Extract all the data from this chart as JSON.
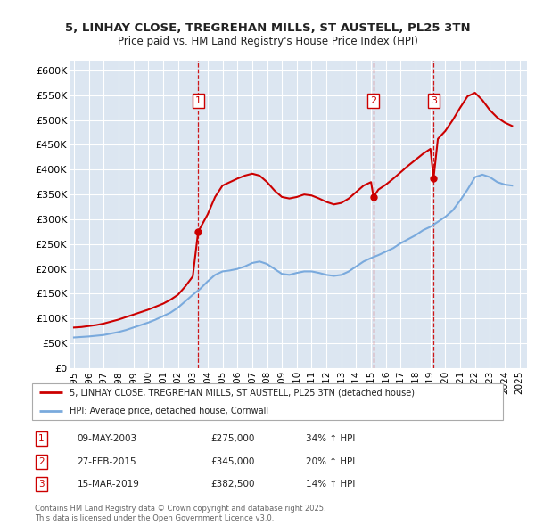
{
  "title1": "5, LINHAY CLOSE, TREGREHAN MILLS, ST AUSTELL, PL25 3TN",
  "title2": "Price paid vs. HM Land Registry's House Price Index (HPI)",
  "plot_bg": "#dce6f1",
  "sale_color": "#cc0000",
  "hpi_color": "#7aaadd",
  "dashed_color": "#cc0000",
  "ylim": [
    0,
    620000
  ],
  "yticks": [
    0,
    50000,
    100000,
    150000,
    200000,
    250000,
    300000,
    350000,
    400000,
    450000,
    500000,
    550000,
    600000
  ],
  "sale_dates": [
    2003.36,
    2015.16,
    2019.21
  ],
  "sale_prices": [
    275000,
    345000,
    382500
  ],
  "sale_labels": [
    "1",
    "2",
    "3"
  ],
  "sale_pct": [
    "34% ↑ HPI",
    "20% ↑ HPI",
    "14% ↑ HPI"
  ],
  "sale_date_str": [
    "09-MAY-2003",
    "27-FEB-2015",
    "15-MAR-2019"
  ],
  "legend_label1": "5, LINHAY CLOSE, TREGREHAN MILLS, ST AUSTELL, PL25 3TN (detached house)",
  "legend_label2": "HPI: Average price, detached house, Cornwall",
  "footer": "Contains HM Land Registry data © Crown copyright and database right 2025.\nThis data is licensed under the Open Government Licence v3.0.",
  "hpi_years": [
    1995.0,
    1995.5,
    1996.0,
    1996.5,
    1997.0,
    1997.5,
    1998.0,
    1998.5,
    1999.0,
    1999.5,
    2000.0,
    2000.5,
    2001.0,
    2001.5,
    2002.0,
    2002.5,
    2003.0,
    2003.5,
    2004.0,
    2004.5,
    2005.0,
    2005.5,
    2006.0,
    2006.5,
    2007.0,
    2007.5,
    2008.0,
    2008.5,
    2009.0,
    2009.5,
    2010.0,
    2010.5,
    2011.0,
    2011.5,
    2012.0,
    2012.5,
    2013.0,
    2013.5,
    2014.0,
    2014.5,
    2015.0,
    2015.5,
    2016.0,
    2016.5,
    2017.0,
    2017.5,
    2018.0,
    2018.5,
    2019.0,
    2019.5,
    2020.0,
    2020.5,
    2021.0,
    2021.5,
    2022.0,
    2022.5,
    2023.0,
    2023.5,
    2024.0,
    2024.5
  ],
  "hpi_values": [
    62000,
    63000,
    64000,
    65500,
    67000,
    70000,
    73000,
    77000,
    82000,
    87000,
    92000,
    98000,
    105000,
    112000,
    122000,
    135000,
    148000,
    160000,
    175000,
    188000,
    195000,
    197000,
    200000,
    205000,
    212000,
    215000,
    210000,
    200000,
    190000,
    188000,
    192000,
    195000,
    195000,
    192000,
    188000,
    186000,
    188000,
    195000,
    205000,
    215000,
    222000,
    228000,
    235000,
    242000,
    252000,
    260000,
    268000,
    278000,
    285000,
    295000,
    305000,
    318000,
    338000,
    360000,
    385000,
    390000,
    385000,
    375000,
    370000,
    368000
  ],
  "sale_line_years": [
    1995.0,
    1995.5,
    1996.0,
    1996.5,
    1997.0,
    1997.5,
    1998.0,
    1998.5,
    1999.0,
    1999.5,
    2000.0,
    2000.5,
    2001.0,
    2001.5,
    2002.0,
    2002.5,
    2003.0,
    2003.36,
    2004.0,
    2004.5,
    2005.0,
    2005.5,
    2006.0,
    2006.5,
    2007.0,
    2007.5,
    2008.0,
    2008.5,
    2009.0,
    2009.5,
    2010.0,
    2010.5,
    2011.0,
    2011.5,
    2012.0,
    2012.5,
    2013.0,
    2013.5,
    2014.0,
    2014.5,
    2015.0,
    2015.16,
    2015.5,
    2016.0,
    2016.5,
    2017.0,
    2017.5,
    2018.0,
    2018.5,
    2019.0,
    2019.21,
    2019.5,
    2020.0,
    2020.5,
    2021.0,
    2021.5,
    2022.0,
    2022.5,
    2023.0,
    2023.5,
    2024.0,
    2024.5
  ],
  "sale_line_values": [
    82000,
    83000,
    85000,
    87000,
    90000,
    94000,
    98000,
    103000,
    108000,
    113000,
    118000,
    124000,
    130000,
    138000,
    148000,
    165000,
    185000,
    275000,
    310000,
    345000,
    368000,
    375000,
    382000,
    388000,
    392000,
    388000,
    375000,
    358000,
    345000,
    342000,
    345000,
    350000,
    348000,
    342000,
    335000,
    330000,
    333000,
    342000,
    355000,
    368000,
    375000,
    345000,
    360000,
    370000,
    382000,
    395000,
    408000,
    420000,
    432000,
    442000,
    382500,
    462000,
    478000,
    500000,
    525000,
    548000,
    555000,
    540000,
    520000,
    505000,
    495000,
    488000
  ],
  "xtick_years": [
    1995,
    1996,
    1997,
    1998,
    1999,
    2000,
    2001,
    2002,
    2003,
    2004,
    2005,
    2006,
    2007,
    2008,
    2009,
    2010,
    2011,
    2012,
    2013,
    2014,
    2015,
    2016,
    2017,
    2018,
    2019,
    2020,
    2021,
    2022,
    2023,
    2024,
    2025
  ]
}
